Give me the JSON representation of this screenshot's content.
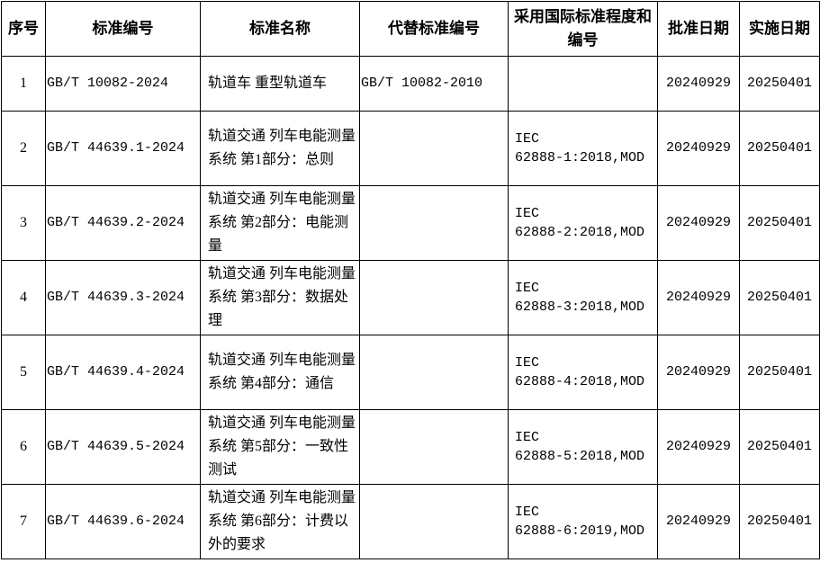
{
  "headers": [
    "序号",
    "标准编号",
    "标准名称",
    "代替标准编号",
    "采用国际标准程度和编号",
    "批准日期",
    "实施日期"
  ],
  "rows": [
    {
      "no": "1",
      "code": "GB/T 10082-2024",
      "name": "轨道车 重型轨道车",
      "replaces": "GB/T 10082-2010",
      "intl_1": "",
      "intl_2": "",
      "approved": "20240929",
      "effective": "20250401"
    },
    {
      "no": "2",
      "code": "GB/T 44639.1-2024",
      "name": "轨道交通 列车电能测量系统 第1部分：总则",
      "replaces": "",
      "intl_1": "IEC",
      "intl_2": "62888-1:2018,MOD",
      "approved": "20240929",
      "effective": "20250401"
    },
    {
      "no": "3",
      "code": "GB/T 44639.2-2024",
      "name": "轨道交通 列车电能测量系统 第2部分：电能测量",
      "replaces": "",
      "intl_1": "IEC",
      "intl_2": "62888-2:2018,MOD",
      "approved": "20240929",
      "effective": "20250401"
    },
    {
      "no": "4",
      "code": "GB/T 44639.3-2024",
      "name": "轨道交通 列车电能测量系统 第3部分：数据处理",
      "replaces": "",
      "intl_1": "IEC",
      "intl_2": "62888-3:2018,MOD",
      "approved": "20240929",
      "effective": "20250401"
    },
    {
      "no": "5",
      "code": "GB/T 44639.4-2024",
      "name": "轨道交通 列车电能测量系统 第4部分：通信",
      "replaces": "",
      "intl_1": "IEC",
      "intl_2": "62888-4:2018,MOD",
      "approved": "20240929",
      "effective": "20250401"
    },
    {
      "no": "6",
      "code": "GB/T 44639.5-2024",
      "name": "轨道交通 列车电能测量系统 第5部分：一致性测试",
      "replaces": "",
      "intl_1": "IEC",
      "intl_2": "62888-5:2018,MOD",
      "approved": "20240929",
      "effective": "20250401"
    },
    {
      "no": "7",
      "code": "GB/T 44639.6-2024",
      "name": "轨道交通 列车电能测量系统 第6部分：计费以外的要求",
      "replaces": "",
      "intl_1": "IEC",
      "intl_2": "62888-6:2019,MOD",
      "approved": "20240929",
      "effective": "20250401"
    }
  ]
}
